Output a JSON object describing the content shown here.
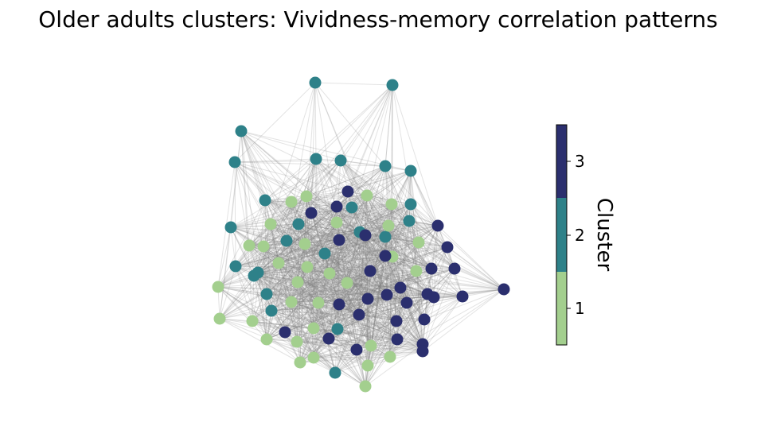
{
  "chart_data": {
    "type": "network",
    "title": "Older adults clusters: Vividness-memory correlation patterns",
    "colorbar": {
      "label": "Cluster",
      "ticks": [
        "1",
        "2",
        "3"
      ],
      "colors": {
        "1": "#a3cf8e",
        "2": "#2e8189",
        "3": "#2b2f6e"
      }
    },
    "edge_color": "#808080",
    "node_count": 100,
    "clusters": [
      {
        "cluster": 1,
        "count": 35
      },
      {
        "cluster": 2,
        "count": 33
      },
      {
        "cluster": 3,
        "count": 32
      }
    ]
  }
}
